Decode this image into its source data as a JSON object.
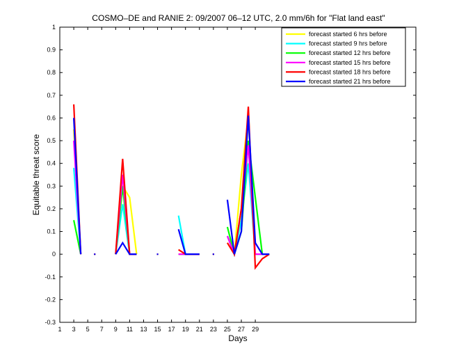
{
  "chart_data": {
    "type": "line",
    "title": "COSMO–DE and RANIE 2: 09/2007 06–12 UTC, 2.0 mm/6h for \"Flat land east\"",
    "xlabel": "Days",
    "ylabel": "Equitable threat score",
    "xlim": [
      1,
      52
    ],
    "ylim": [
      -0.3,
      1
    ],
    "xticks": [
      1,
      3,
      5,
      7,
      9,
      11,
      13,
      15,
      17,
      19,
      21,
      23,
      25,
      27,
      29
    ],
    "yticks": [
      -0.3,
      -0.2,
      -0.1,
      0,
      0.1,
      0.2,
      0.3,
      0.4,
      0.5,
      0.6,
      0.7,
      0.8,
      0.9,
      1
    ],
    "legend_position": "top-right",
    "series": [
      {
        "name": "forecast started 6 hrs before",
        "color": "#ffff00",
        "values": [
          [
            3,
            0.55
          ],
          [
            4,
            0.0
          ],
          [
            null,
            null
          ],
          [
            6,
            0.0
          ],
          [
            null,
            null
          ],
          [
            9,
            0.0
          ],
          [
            10,
            0.3
          ],
          [
            11,
            0.25
          ],
          [
            12,
            0.0
          ],
          [
            null,
            null
          ],
          [
            15,
            0.0
          ],
          [
            null,
            null
          ],
          [
            18,
            0.02
          ],
          [
            19,
            0.0
          ],
          [
            20,
            0.0
          ],
          [
            21,
            0.0
          ],
          [
            null,
            null
          ],
          [
            23,
            0.0
          ],
          [
            null,
            null
          ],
          [
            25,
            0.05
          ],
          [
            26,
            0.0
          ],
          [
            27,
            0.35
          ],
          [
            28,
            0.6
          ],
          [
            29,
            0.0
          ],
          [
            30,
            0.0
          ],
          [
            31,
            0.0
          ]
        ]
      },
      {
        "name": "forecast started 9 hrs before",
        "color": "#00ffff",
        "values": [
          [
            3,
            0.38
          ],
          [
            4,
            0.0
          ],
          [
            null,
            null
          ],
          [
            6,
            0.0
          ],
          [
            null,
            null
          ],
          [
            9,
            0.0
          ],
          [
            10,
            0.22
          ],
          [
            11,
            0.0
          ],
          [
            12,
            0.0
          ],
          [
            null,
            null
          ],
          [
            15,
            0.0
          ],
          [
            null,
            null
          ],
          [
            18,
            0.17
          ],
          [
            19,
            0.0
          ],
          [
            20,
            0.0
          ],
          [
            21,
            0.0
          ],
          [
            null,
            null
          ],
          [
            23,
            0.0
          ],
          [
            null,
            null
          ],
          [
            25,
            0.08
          ],
          [
            26,
            0.0
          ],
          [
            27,
            0.15
          ],
          [
            28,
            0.4
          ],
          [
            29,
            0.0
          ],
          [
            30,
            0.0
          ],
          [
            31,
            0.0
          ]
        ]
      },
      {
        "name": "forecast started 12 hrs before",
        "color": "#00ff00",
        "values": [
          [
            3,
            0.15
          ],
          [
            4,
            0.0
          ],
          [
            null,
            null
          ],
          [
            6,
            0.0
          ],
          [
            null,
            null
          ],
          [
            9,
            0.0
          ],
          [
            10,
            0.3
          ],
          [
            11,
            0.0
          ],
          [
            12,
            0.0
          ],
          [
            null,
            null
          ],
          [
            15,
            0.0
          ],
          [
            null,
            null
          ],
          [
            18,
            0.0
          ],
          [
            19,
            0.0
          ],
          [
            20,
            0.0
          ],
          [
            21,
            0.0
          ],
          [
            null,
            null
          ],
          [
            23,
            0.0
          ],
          [
            null,
            null
          ],
          [
            25,
            0.12
          ],
          [
            26,
            0.0
          ],
          [
            27,
            0.1
          ],
          [
            28,
            0.5
          ],
          [
            29,
            0.25
          ],
          [
            30,
            0.0
          ],
          [
            31,
            0.0
          ]
        ]
      },
      {
        "name": "forecast started 15 hrs before",
        "color": "#ff00ff",
        "values": [
          [
            3,
            0.5
          ],
          [
            4,
            0.0
          ],
          [
            null,
            null
          ],
          [
            6,
            0.0
          ],
          [
            null,
            null
          ],
          [
            9,
            0.0
          ],
          [
            10,
            0.35
          ],
          [
            11,
            0.0
          ],
          [
            12,
            0.0
          ],
          [
            null,
            null
          ],
          [
            15,
            0.0
          ],
          [
            null,
            null
          ],
          [
            18,
            0.0
          ],
          [
            19,
            0.0
          ],
          [
            20,
            0.0
          ],
          [
            21,
            0.0
          ],
          [
            null,
            null
          ],
          [
            23,
            0.0
          ],
          [
            null,
            null
          ],
          [
            25,
            0.08
          ],
          [
            26,
            0.0
          ],
          [
            27,
            0.2
          ],
          [
            28,
            0.48
          ],
          [
            29,
            0.0
          ],
          [
            30,
            0.0
          ],
          [
            31,
            0.0
          ]
        ]
      },
      {
        "name": "forecast started 18 hrs before",
        "color": "#ff0000",
        "values": [
          [
            3,
            0.66
          ],
          [
            4,
            0.0
          ],
          [
            null,
            null
          ],
          [
            6,
            0.0
          ],
          [
            null,
            null
          ],
          [
            9,
            0.0
          ],
          [
            10,
            0.42
          ],
          [
            11,
            0.0
          ],
          [
            12,
            0.0
          ],
          [
            null,
            null
          ],
          [
            15,
            0.0
          ],
          [
            null,
            null
          ],
          [
            18,
            0.02
          ],
          [
            19,
            0.0
          ],
          [
            20,
            0.0
          ],
          [
            21,
            0.0
          ],
          [
            null,
            null
          ],
          [
            23,
            0.0
          ],
          [
            null,
            null
          ],
          [
            25,
            0.05
          ],
          [
            26,
            0.0
          ],
          [
            27,
            0.2
          ],
          [
            28,
            0.65
          ],
          [
            29,
            -0.06
          ],
          [
            30,
            -0.02
          ],
          [
            31,
            0.0
          ]
        ]
      },
      {
        "name": "forecast started 21 hrs before",
        "color": "#0000ff",
        "values": [
          [
            3,
            0.6
          ],
          [
            4,
            0.0
          ],
          [
            null,
            null
          ],
          [
            6,
            0.0
          ],
          [
            null,
            null
          ],
          [
            9,
            0.0
          ],
          [
            10,
            0.05
          ],
          [
            11,
            0.0
          ],
          [
            12,
            0.0
          ],
          [
            null,
            null
          ],
          [
            15,
            0.0
          ],
          [
            null,
            null
          ],
          [
            18,
            0.11
          ],
          [
            19,
            0.0
          ],
          [
            20,
            0.0
          ],
          [
            21,
            0.0
          ],
          [
            null,
            null
          ],
          [
            23,
            0.0
          ],
          [
            null,
            null
          ],
          [
            25,
            0.24
          ],
          [
            26,
            0.0
          ],
          [
            27,
            0.1
          ],
          [
            28,
            0.61
          ],
          [
            29,
            0.05
          ],
          [
            30,
            0.0
          ],
          [
            31,
            0.0
          ]
        ]
      }
    ]
  }
}
